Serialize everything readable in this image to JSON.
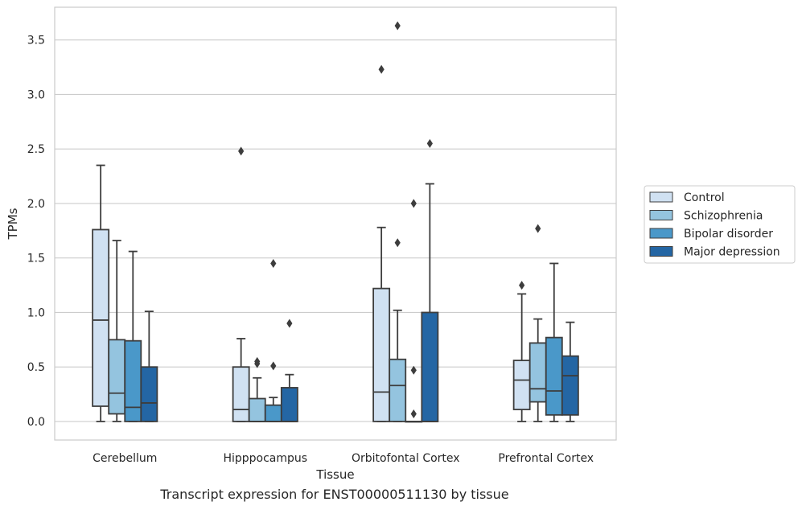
{
  "caption": "Transcript expression for ENST00000511130 by tissue",
  "chart_data": {
    "type": "box",
    "xlabel": "Tissue",
    "ylabel": "TPMs",
    "ylim": [
      -0.17,
      3.8
    ],
    "yticks": [
      0.0,
      0.5,
      1.0,
      1.5,
      2.0,
      2.5,
      3.0,
      3.5
    ],
    "ytick_labels": [
      "0.0",
      "0.5",
      "1.0",
      "1.5",
      "2.0",
      "2.5",
      "3.0",
      "3.5"
    ],
    "grid": "horizontal",
    "legend_position": "right",
    "categories": [
      "Cerebellum",
      "Hipppocampus",
      "Orbitofontal Cortex",
      "Prefrontal Cortex"
    ],
    "series": [
      {
        "name": "Control",
        "color": "#d0e1f2",
        "boxes": [
          {
            "whislo": 0.0,
            "q1": 0.14,
            "med": 0.93,
            "q3": 1.76,
            "whishi": 2.35,
            "fliers": []
          },
          {
            "whislo": 0.0,
            "q1": 0.0,
            "med": 0.11,
            "q3": 0.5,
            "whishi": 0.76,
            "fliers": [
              2.48
            ]
          },
          {
            "whislo": 0.0,
            "q1": 0.0,
            "med": 0.27,
            "q3": 1.22,
            "whishi": 1.78,
            "fliers": [
              3.23
            ]
          },
          {
            "whislo": 0.0,
            "q1": 0.11,
            "med": 0.38,
            "q3": 0.56,
            "whishi": 1.17,
            "fliers": [
              1.25
            ]
          }
        ]
      },
      {
        "name": "Schizophrenia",
        "color": "#94c4df",
        "boxes": [
          {
            "whislo": 0.0,
            "q1": 0.07,
            "med": 0.26,
            "q3": 0.75,
            "whishi": 1.66,
            "fliers": []
          },
          {
            "whislo": 0.0,
            "q1": 0.0,
            "med": 0.0,
            "q3": 0.21,
            "whishi": 0.4,
            "fliers": [
              0.53,
              0.55
            ]
          },
          {
            "whislo": 0.0,
            "q1": 0.0,
            "med": 0.33,
            "q3": 0.57,
            "whishi": 1.02,
            "fliers": [
              1.64,
              3.63
            ]
          },
          {
            "whislo": 0.0,
            "q1": 0.18,
            "med": 0.3,
            "q3": 0.72,
            "whishi": 0.94,
            "fliers": [
              1.77
            ]
          }
        ]
      },
      {
        "name": "Bipolar disorder",
        "color": "#4a98c9",
        "boxes": [
          {
            "whislo": 0.0,
            "q1": 0.0,
            "med": 0.13,
            "q3": 0.74,
            "whishi": 1.56,
            "fliers": []
          },
          {
            "whislo": 0.0,
            "q1": 0.0,
            "med": 0.0,
            "q3": 0.15,
            "whishi": 0.22,
            "fliers": [
              0.51,
              1.45
            ]
          },
          {
            "whislo": 0.0,
            "q1": 0.0,
            "med": 0.0,
            "q3": 0.0,
            "whishi": 0.0,
            "fliers": [
              0.07,
              0.47,
              2.0
            ]
          },
          {
            "whislo": 0.0,
            "q1": 0.06,
            "med": 0.28,
            "q3": 0.77,
            "whishi": 1.45,
            "fliers": []
          }
        ]
      },
      {
        "name": "Major depression",
        "color": "#2466a4",
        "boxes": [
          {
            "whislo": 0.0,
            "q1": 0.0,
            "med": 0.17,
            "q3": 0.5,
            "whishi": 1.01,
            "fliers": []
          },
          {
            "whislo": 0.0,
            "q1": 0.0,
            "med": 0.0,
            "q3": 0.31,
            "whishi": 0.43,
            "fliers": [
              0.9
            ]
          },
          {
            "whislo": 0.0,
            "q1": 0.0,
            "med": 0.0,
            "q3": 1.0,
            "whishi": 2.18,
            "fliers": [
              2.55
            ]
          },
          {
            "whislo": 0.0,
            "q1": 0.06,
            "med": 0.42,
            "q3": 0.6,
            "whishi": 0.91,
            "fliers": []
          }
        ]
      }
    ]
  }
}
